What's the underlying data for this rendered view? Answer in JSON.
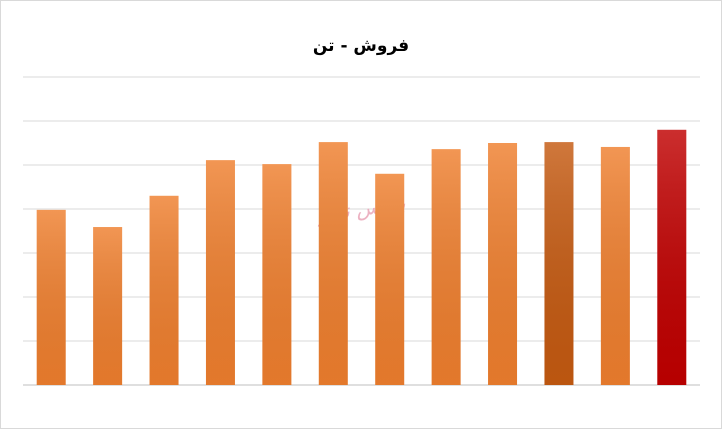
{
  "chart_data": {
    "type": "bar",
    "title": "فروش - تن",
    "watermark": "بورس نیوز",
    "categories": [
      null,
      null,
      null,
      null,
      null,
      null,
      null,
      null,
      null,
      null,
      null,
      null
    ],
    "values": [
      3.98,
      3.59,
      4.3,
      5.11,
      5.02,
      5.52,
      4.8,
      5.36,
      5.5,
      5.52,
      5.41,
      5.8
    ],
    "colors": [
      "#ef7f2e",
      "#ef7f2e",
      "#ef7f2e",
      "#ef7f2e",
      "#ef7f2e",
      "#ef7f2e",
      "#ef7f2e",
      "#ef7f2e",
      "#ef7f2e",
      "#c55a11",
      "#ef7f2e",
      "#c00000"
    ],
    "ylim": [
      0,
      7
    ],
    "yticks": [
      0,
      1,
      2,
      3,
      4,
      5,
      6,
      7
    ],
    "grid": true
  }
}
